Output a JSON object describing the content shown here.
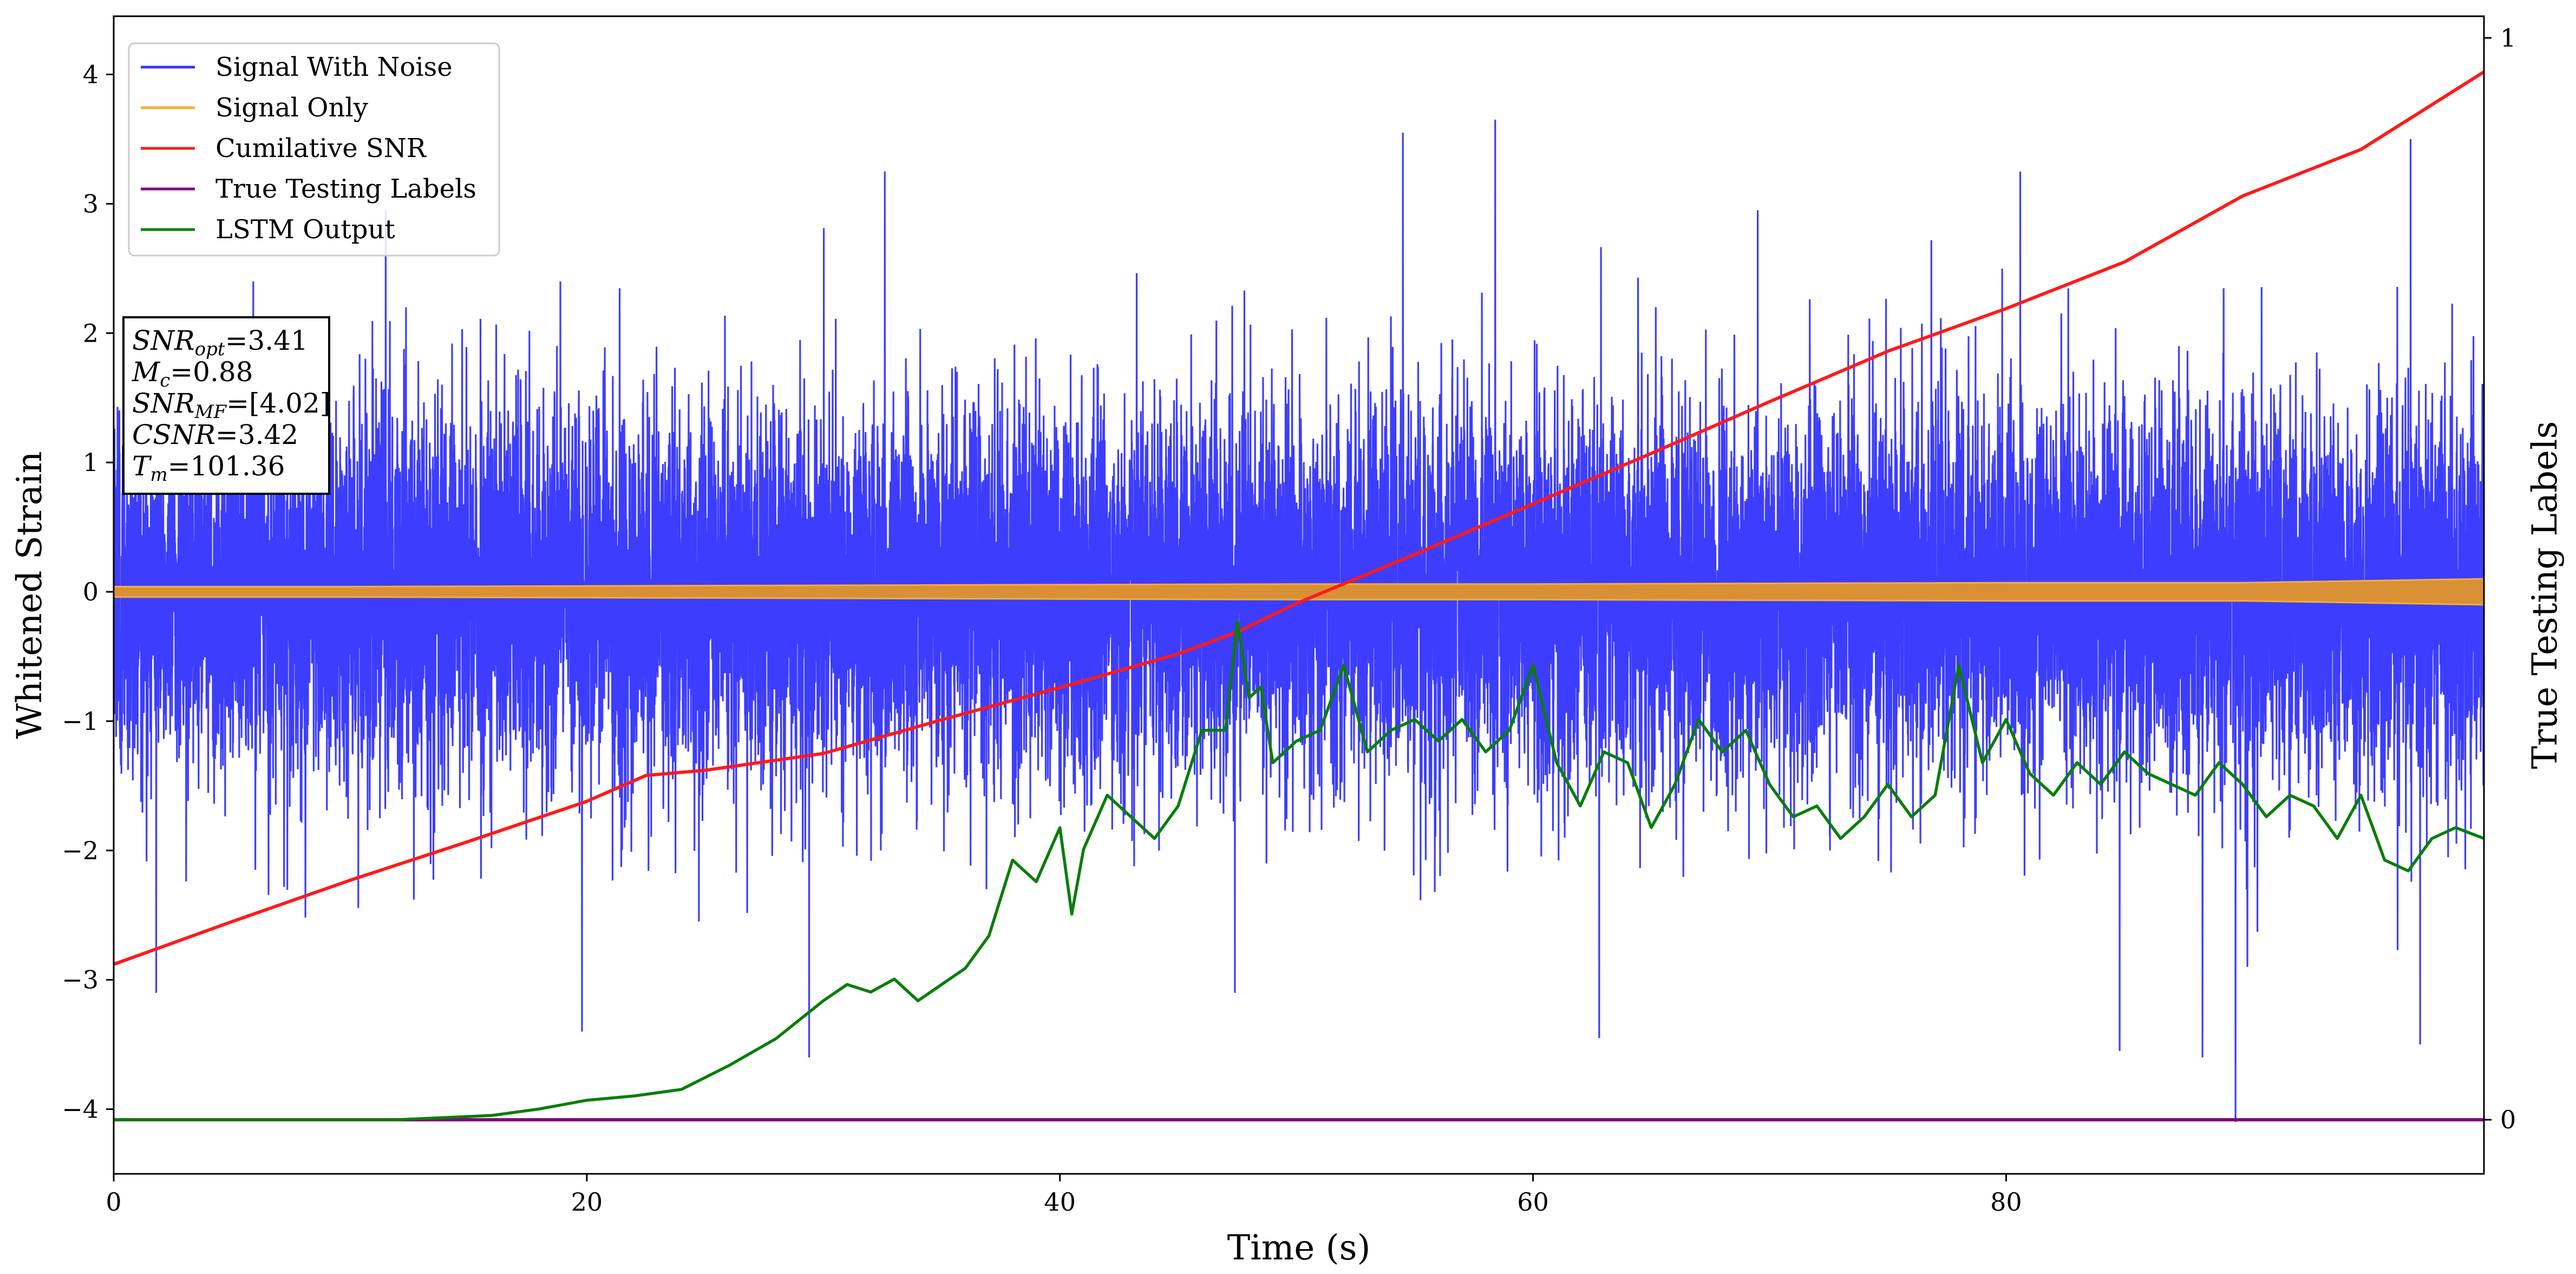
{
  "chart_data": {
    "type": "line",
    "title": "",
    "xlabel": "Time (s)",
    "ylabel": "Whitened Strain",
    "y2label": "True Testing Labels",
    "xlim": [
      0,
      100.2
    ],
    "ylim": [
      -4.5,
      4.45
    ],
    "y2lim": [
      -0.05,
      1.02
    ],
    "xticks": [
      0,
      20,
      40,
      60,
      80
    ],
    "yticks": [
      -4,
      -3,
      -2,
      -1,
      0,
      1,
      2,
      3,
      4
    ],
    "y2ticks": [
      0,
      1
    ],
    "legend_position": "upper-left",
    "grid": false,
    "series": [
      {
        "name": "Signal With Noise",
        "color": "#3333ff",
        "axis": "left",
        "kind": "noise",
        "duration": 100.2,
        "std": 0.72,
        "samples": 16000,
        "extremes": [
          {
            "x": 1.8,
            "y": -3.1
          },
          {
            "x": 5.9,
            "y": 2.4
          },
          {
            "x": 11.5,
            "y": 2.95
          },
          {
            "x": 19.8,
            "y": -3.4
          },
          {
            "x": 29.4,
            "y": -3.6
          },
          {
            "x": 32.6,
            "y": 3.25
          },
          {
            "x": 47.4,
            "y": -3.1
          },
          {
            "x": 54.5,
            "y": 3.55
          },
          {
            "x": 58.4,
            "y": 3.65
          },
          {
            "x": 62.8,
            "y": -3.45
          },
          {
            "x": 69.5,
            "y": 2.95
          },
          {
            "x": 80.6,
            "y": 3.25
          },
          {
            "x": 84.8,
            "y": -3.55
          },
          {
            "x": 88.3,
            "y": -3.6
          },
          {
            "x": 89.7,
            "y": -4.1
          },
          {
            "x": 97.1,
            "y": 3.5
          },
          {
            "x": 97.5,
            "y": -3.5
          }
        ]
      },
      {
        "name": "Signal Only",
        "color": "#f5ad3b",
        "fill_color": "#d99035",
        "axis": "left",
        "kind": "band",
        "x": [
          0,
          10,
          20,
          30,
          40,
          50,
          60,
          70,
          80,
          90,
          100.2
        ],
        "upper": [
          0.04,
          0.04,
          0.045,
          0.05,
          0.055,
          0.06,
          0.06,
          0.065,
          0.07,
          0.07,
          0.1
        ],
        "lower": [
          -0.04,
          -0.04,
          -0.045,
          -0.05,
          -0.055,
          -0.06,
          -0.06,
          -0.065,
          -0.07,
          -0.07,
          -0.1
        ]
      },
      {
        "name": "Cumilative SNR",
        "color": "#ff1a1a",
        "axis": "left",
        "x": [
          0,
          5,
          10,
          15,
          20,
          22.5,
          25,
          30,
          35,
          40,
          45,
          47.5,
          50,
          55,
          60,
          65,
          70,
          75,
          80,
          85,
          90,
          95,
          100.2
        ],
        "values": [
          -2.88,
          -2.55,
          -2.23,
          -1.93,
          -1.62,
          -1.42,
          -1.38,
          -1.25,
          -0.99,
          -0.74,
          -0.48,
          -0.31,
          -0.09,
          0.29,
          0.68,
          1.07,
          1.47,
          1.86,
          2.19,
          2.55,
          3.06,
          3.42,
          4.02
        ]
      },
      {
        "name": "True Testing Labels",
        "color": "#800080",
        "axis": "right",
        "x": [
          0,
          100.2
        ],
        "values": [
          0,
          0
        ]
      },
      {
        "name": "LSTM Output",
        "color": "#0a7d0a",
        "axis": "right",
        "x": [
          0,
          12,
          14,
          16,
          18,
          20,
          22,
          24,
          26,
          28,
          30,
          31,
          32,
          33,
          34,
          35,
          36,
          37,
          38,
          39,
          40,
          40.5,
          41,
          42,
          43,
          44,
          45,
          46,
          47,
          47.5,
          48,
          48.5,
          49,
          50,
          51,
          52,
          53,
          54,
          55,
          56,
          57,
          58,
          59,
          60,
          61,
          62,
          63,
          64,
          65,
          66,
          67,
          68,
          69,
          70,
          71,
          72,
          73,
          74,
          75,
          76,
          77,
          78,
          79,
          80,
          81,
          82,
          83,
          84,
          85,
          86,
          87,
          88,
          89,
          90,
          91,
          92,
          93,
          94,
          95,
          96,
          97,
          98,
          99,
          100.2
        ],
        "values": [
          0,
          0,
          0.002,
          0.004,
          0.01,
          0.018,
          0.022,
          0.028,
          0.05,
          0.075,
          0.11,
          0.125,
          0.118,
          0.13,
          0.11,
          0.125,
          0.14,
          0.17,
          0.24,
          0.22,
          0.27,
          0.19,
          0.25,
          0.3,
          0.28,
          0.26,
          0.29,
          0.36,
          0.36,
          0.46,
          0.39,
          0.4,
          0.33,
          0.35,
          0.36,
          0.42,
          0.34,
          0.36,
          0.37,
          0.35,
          0.37,
          0.34,
          0.36,
          0.42,
          0.33,
          0.29,
          0.34,
          0.33,
          0.27,
          0.31,
          0.37,
          0.34,
          0.36,
          0.31,
          0.28,
          0.29,
          0.26,
          0.28,
          0.31,
          0.28,
          0.3,
          0.42,
          0.33,
          0.37,
          0.32,
          0.3,
          0.33,
          0.31,
          0.34,
          0.32,
          0.31,
          0.3,
          0.33,
          0.31,
          0.28,
          0.3,
          0.29,
          0.26,
          0.3,
          0.24,
          0.23,
          0.26,
          0.27,
          0.26
        ]
      }
    ],
    "annotation": {
      "lines": [
        {
          "label": "SNR",
          "sub": "opt",
          "value": "=3.41",
          "italic": true
        },
        {
          "label": "M",
          "sub": "c",
          "value": "=0.88",
          "italic": true
        },
        {
          "label": "SNR",
          "sub": "MF",
          "value": "=[4.02]",
          "italic": true
        },
        {
          "label": "CSNR",
          "sub": "",
          "value": "=3.42",
          "italic": true
        },
        {
          "label": "T",
          "sub": "m",
          "value": "=101.36",
          "italic": true
        }
      ]
    }
  }
}
